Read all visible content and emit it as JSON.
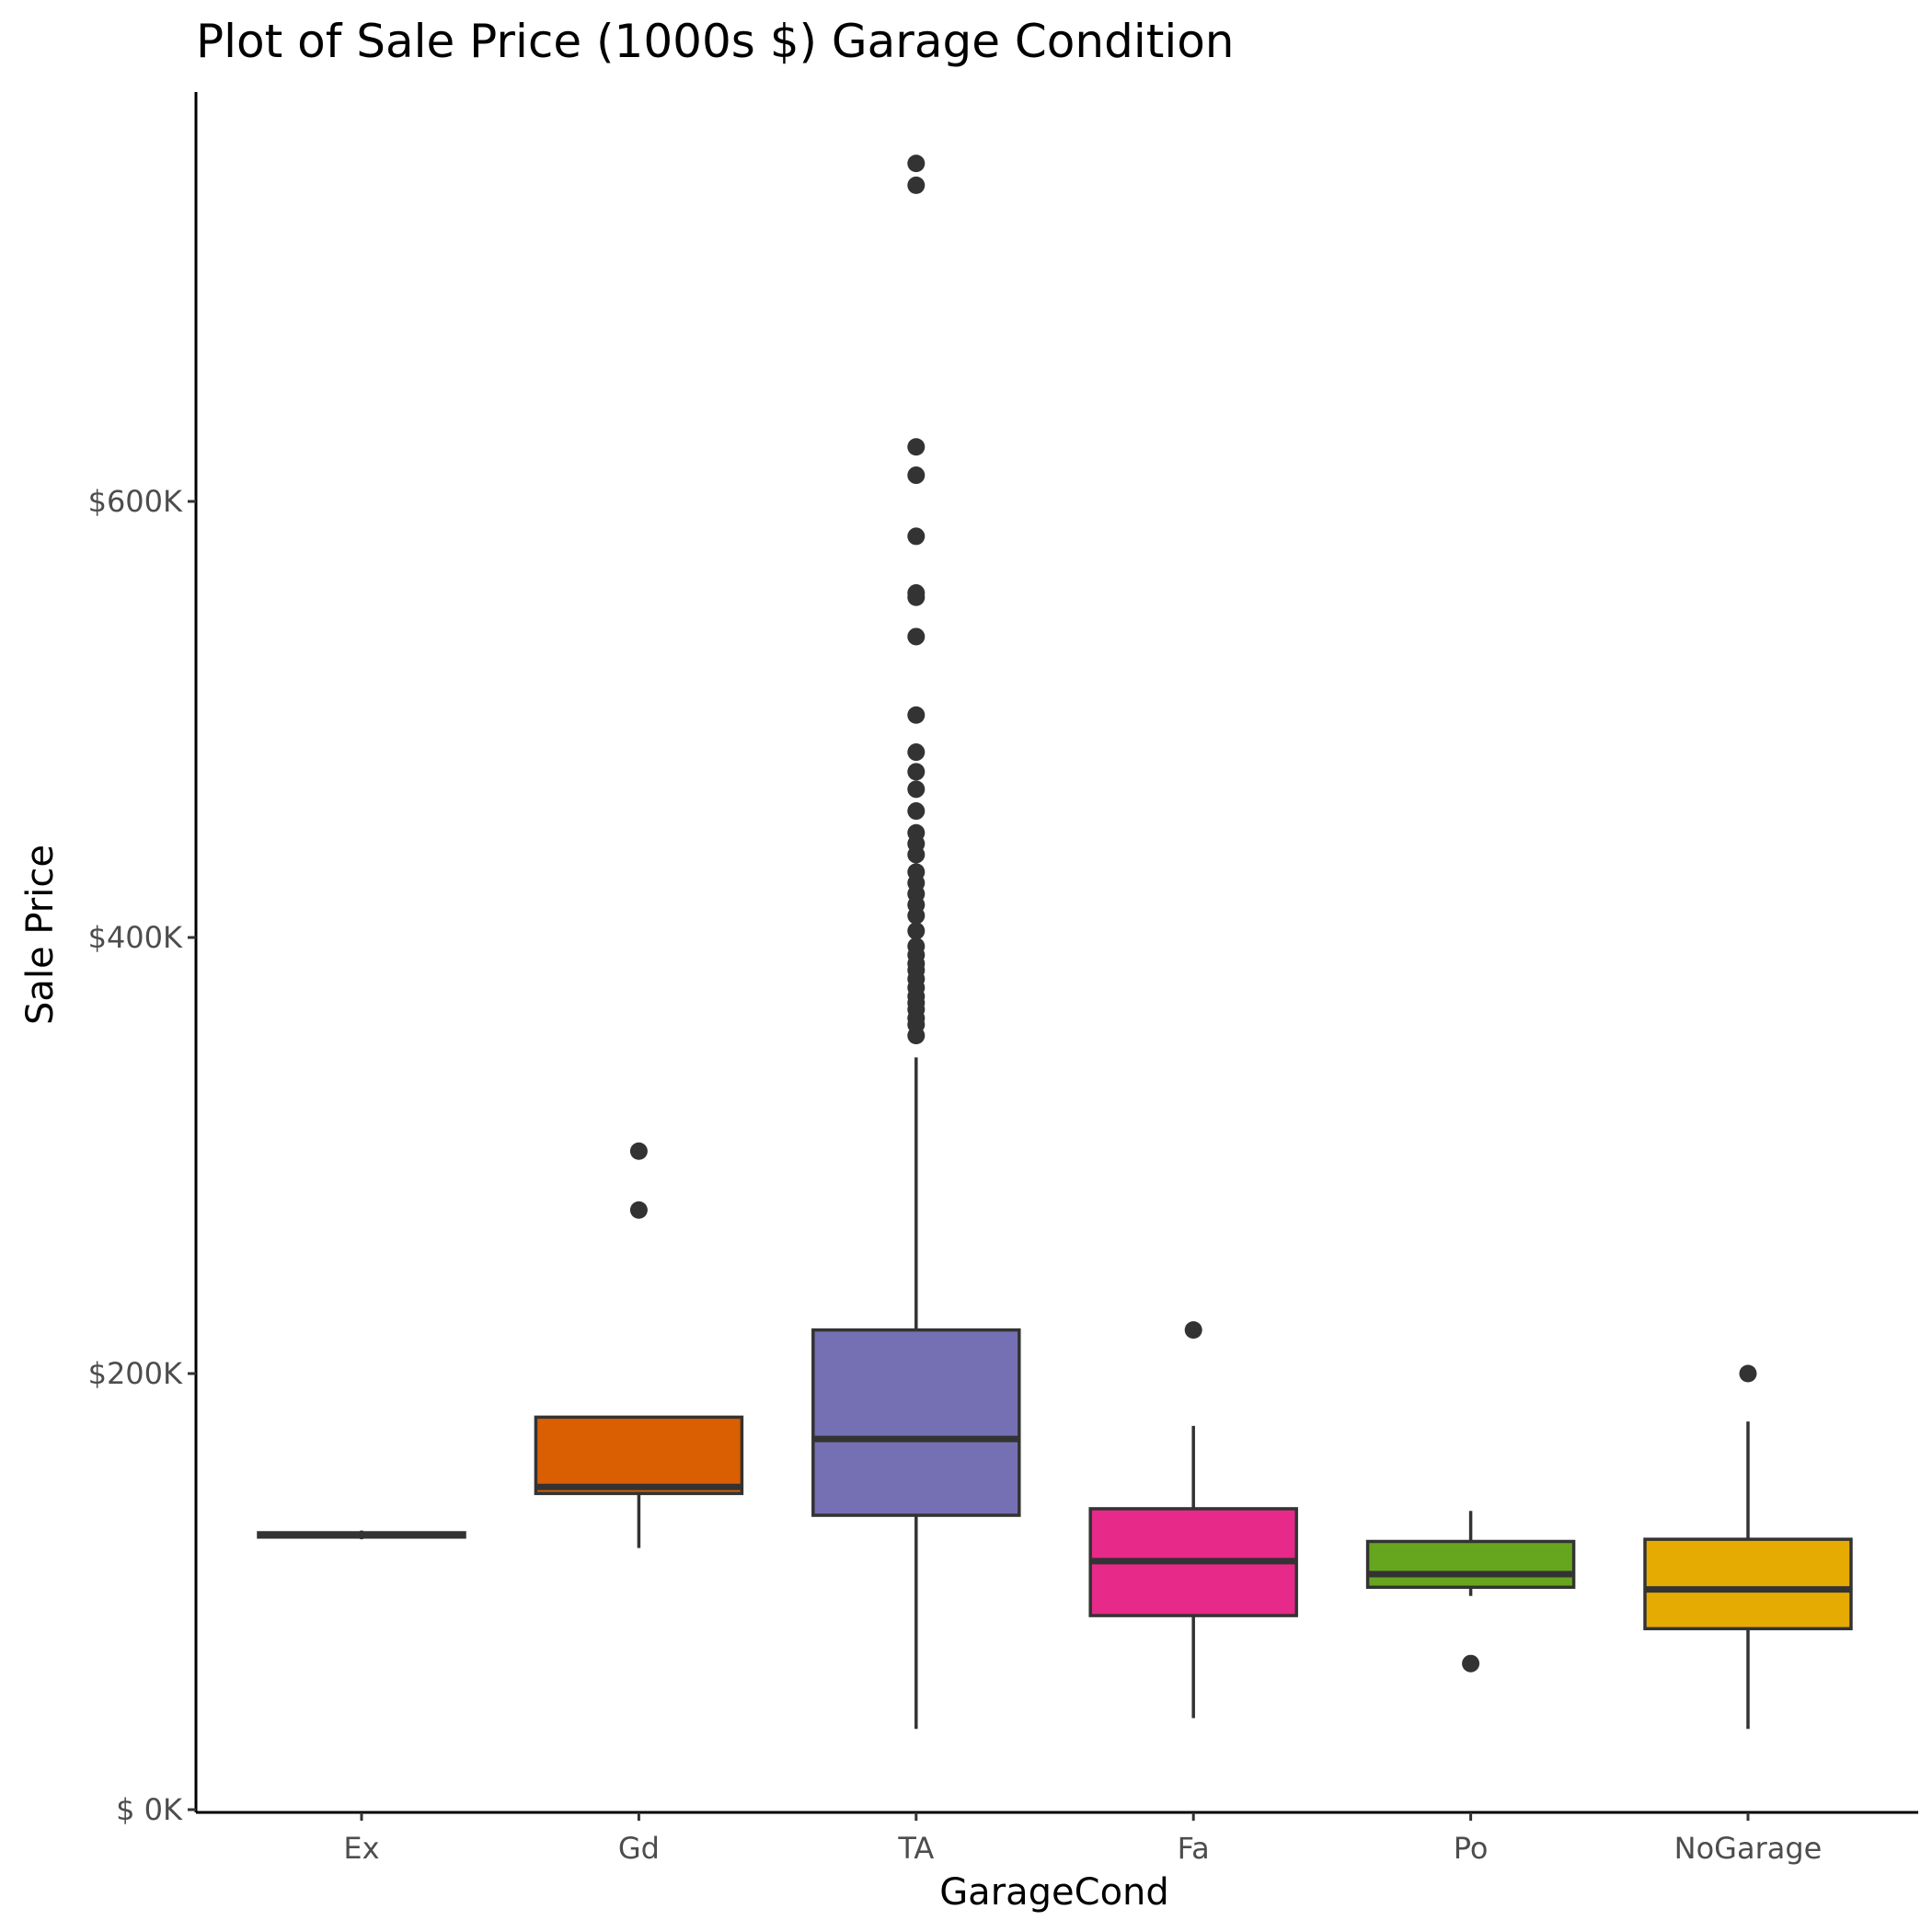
{
  "chart_data": {
    "type": "boxplot",
    "title": "Plot of Sale Price (1000s $) Garage Condition",
    "xlabel": "GarageCond",
    "ylabel": "Sale Price",
    "ylim": [
      0,
      755
    ],
    "y_unit": "1000s $",
    "yticks": [
      0,
      200,
      400,
      600
    ],
    "ytick_labels": [
      "$  0K",
      "$200K",
      "$400K",
      "$600K"
    ],
    "grid": false,
    "legend": "none",
    "categories": [
      "Ex",
      "Gd",
      "TA",
      "Fa",
      "Po",
      "NoGarage"
    ],
    "colors": [
      "#333333",
      "#d95f02",
      "#7570b3",
      "#e7298a",
      "#66a61e",
      "#e6ab02"
    ],
    "boxes": [
      {
        "category": "Ex",
        "whisker_low": 124,
        "q1": 125,
        "median": 126,
        "q3": 127,
        "whisker_high": 128,
        "outliers": []
      },
      {
        "category": "Gd",
        "whisker_low": 120,
        "q1": 145,
        "median": 148,
        "q3": 180,
        "whisker_high": 180,
        "outliers": [
          275,
          302
        ]
      },
      {
        "category": "TA",
        "whisker_low": 37,
        "q1": 135,
        "median": 170,
        "q3": 220,
        "whisker_high": 345,
        "outliers": [
          355,
          360,
          363,
          367,
          370,
          373,
          377,
          381,
          385,
          388,
          392,
          396,
          403,
          410,
          415,
          420,
          425,
          430,
          438,
          443,
          448,
          458,
          468,
          476,
          485,
          502,
          538,
          556,
          558,
          584,
          612,
          625,
          745,
          755
        ]
      },
      {
        "category": "Fa",
        "whisker_low": 42,
        "q1": 89,
        "median": 114,
        "q3": 138,
        "whisker_high": 176,
        "outliers": [
          220
        ]
      },
      {
        "category": "Po",
        "whisker_low": 98,
        "q1": 102,
        "median": 108,
        "q3": 123,
        "whisker_high": 137,
        "outliers": [
          67
        ]
      },
      {
        "category": "NoGarage",
        "whisker_low": 37,
        "q1": 83,
        "median": 101,
        "q3": 124,
        "whisker_high": 178,
        "outliers": [
          200
        ]
      }
    ]
  }
}
